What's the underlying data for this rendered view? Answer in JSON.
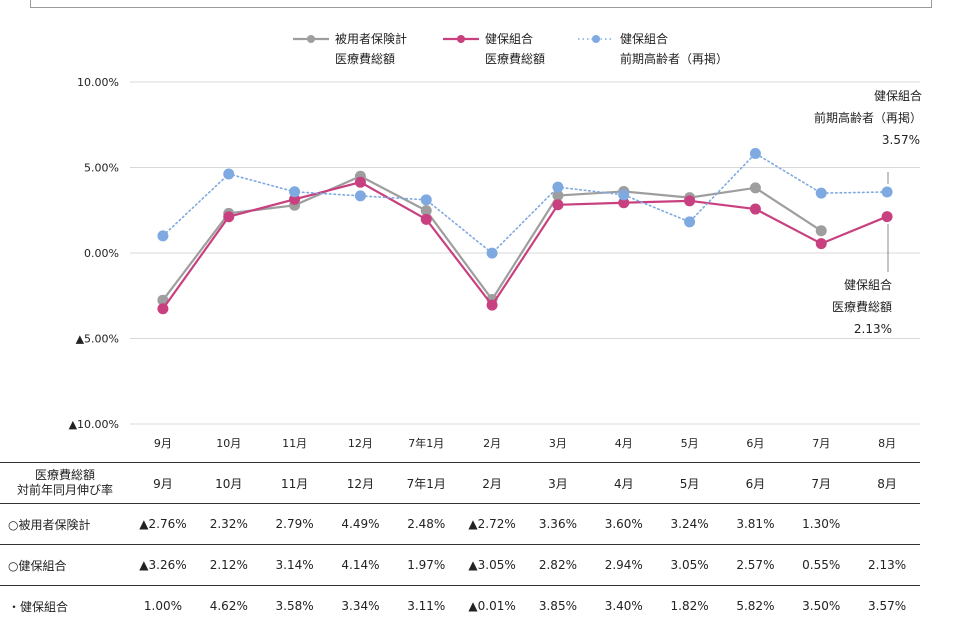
{
  "chart_data": {
    "type": "line",
    "categories": [
      "9月",
      "10月",
      "11月",
      "12月",
      "7年1月",
      "2月",
      "3月",
      "4月",
      "5月",
      "6月",
      "7月",
      "8月"
    ],
    "y_tick_labels": [
      "10.00%",
      "5.00%",
      "0.00%",
      "▲5.00%",
      "▲10.00%"
    ],
    "y_ticks": [
      10,
      5,
      0,
      -5,
      -10
    ],
    "ylim": [
      -10,
      10
    ],
    "grid": true,
    "legend_position": "top",
    "series": [
      {
        "name_lines": [
          "被用者保険計",
          "医療費総額"
        ],
        "color": "#9e9e9e",
        "style": "solid",
        "values": [
          -2.76,
          2.32,
          2.79,
          4.49,
          2.48,
          -2.72,
          3.36,
          3.6,
          3.24,
          3.81,
          1.3,
          null
        ]
      },
      {
        "name_lines": [
          "健保組合",
          "医療費総額"
        ],
        "color": "#c8407f",
        "style": "solid",
        "values": [
          -3.26,
          2.12,
          3.14,
          4.14,
          1.97,
          -3.05,
          2.82,
          2.94,
          3.05,
          2.57,
          0.55,
          2.13
        ]
      },
      {
        "name_lines": [
          "健保組合",
          "前期高齢者（再掲）"
        ],
        "color": "#7ea9e1",
        "style": "dotted",
        "values": [
          1.0,
          4.62,
          3.58,
          3.34,
          3.11,
          -0.01,
          3.85,
          3.4,
          1.82,
          5.82,
          3.5,
          3.57
        ]
      }
    ],
    "annotations": [
      {
        "series": 2,
        "lines": [
          "健保組合",
          "前期高齢者（再掲）",
          "3.57%"
        ]
      },
      {
        "series": 1,
        "lines": [
          "健保組合",
          "医療費総額",
          "2.13%"
        ]
      }
    ]
  },
  "table": {
    "header_label_lines": [
      "医療費総額",
      "対前年同月伸び率"
    ],
    "months": [
      "9月",
      "10月",
      "11月",
      "12月",
      "7年1月",
      "2月",
      "3月",
      "4月",
      "5月",
      "6月",
      "7月",
      "8月"
    ],
    "rows": [
      {
        "label": "○被用者保険計",
        "values": [
          "▲2.76%",
          "2.32%",
          "2.79%",
          "4.49%",
          "2.48%",
          "▲2.72%",
          "3.36%",
          "3.60%",
          "3.24%",
          "3.81%",
          "1.30%",
          ""
        ]
      },
      {
        "label": "○健保組合",
        "values": [
          "▲3.26%",
          "2.12%",
          "3.14%",
          "4.14%",
          "1.97%",
          "▲3.05%",
          "2.82%",
          "2.94%",
          "3.05%",
          "2.57%",
          "0.55%",
          "2.13%"
        ]
      },
      {
        "label": "・健保組合",
        "values": [
          "1.00%",
          "4.62%",
          "3.58%",
          "3.34%",
          "3.11%",
          "▲0.01%",
          "3.85%",
          "3.40%",
          "1.82%",
          "5.82%",
          "3.50%",
          "3.57%"
        ]
      }
    ]
  }
}
